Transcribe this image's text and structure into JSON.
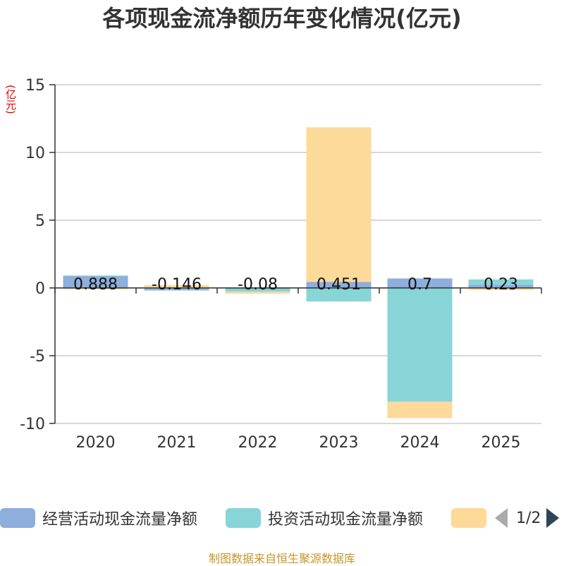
{
  "chart_data": {
    "type": "bar",
    "stacked": true,
    "title": "各项现金流净额历年变化情况(亿元)",
    "ylabel": "(亿元)",
    "xlabel": "",
    "categories": [
      "2020",
      "2021",
      "2022",
      "2023",
      "2024",
      "2025"
    ],
    "ylim": [
      -10,
      15
    ],
    "yticks": [
      -10,
      -5,
      0,
      5,
      10,
      15
    ],
    "grid": true,
    "series": [
      {
        "name": "经营活动现金流量净额",
        "color": "#8eaedc",
        "values": [
          0.888,
          -0.146,
          -0.08,
          0.451,
          0.7,
          0.23
        ]
      },
      {
        "name": "投资活动现金流量净额",
        "color": "#88d5d8",
        "values": [
          0.03,
          -0.05,
          -0.2,
          -1.0,
          -8.4,
          0.4
        ]
      },
      {
        "name": "",
        "color": "#fdd99a",
        "values": [
          -0.1,
          0.2,
          -0.15,
          11.4,
          -1.2,
          -0.15
        ]
      }
    ],
    "data_labels": [
      "0.888",
      "-0.146",
      "-0.08",
      "0.451",
      "0.7",
      "0.23"
    ],
    "legend_position": "bottom"
  },
  "legend": {
    "items": [
      {
        "label": "经营活动现金流量净额",
        "color": "#8eaedc"
      },
      {
        "label": "投资活动现金流量净额",
        "color": "#88d5d8"
      },
      {
        "label": "",
        "color": "#fdd99a"
      }
    ],
    "page": "1/2"
  },
  "source": "制图数据来自恒生聚源数据库"
}
